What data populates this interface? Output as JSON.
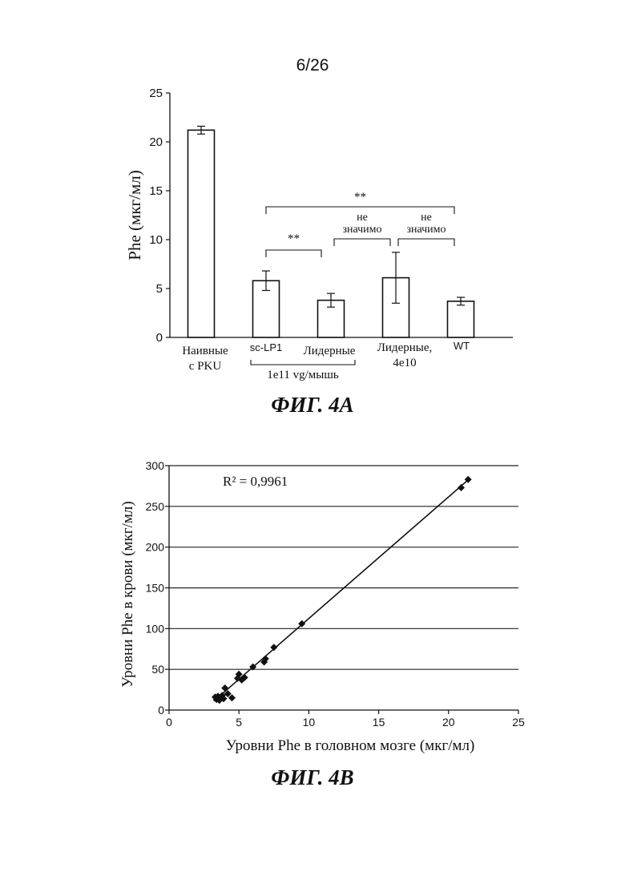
{
  "page_number": "6/26",
  "chart_data": [
    {
      "type": "bar",
      "ylabel": "Phe (мкг/мл)",
      "ylim": [
        0,
        25
      ],
      "yticks": [
        0,
        5,
        10,
        15,
        20,
        25
      ],
      "categories": [
        "Наивные\nс PKU",
        "sc-LP1",
        "Лидерные",
        "Лидерные,\n4e10",
        "WT"
      ],
      "values": [
        21.2,
        5.8,
        3.8,
        6.1,
        3.7
      ],
      "errors": [
        0.4,
        1.0,
        0.7,
        2.6,
        0.4
      ],
      "group_label": "1e11 vg/мышь",
      "annotations": [
        {
          "from": 1,
          "to": 4,
          "label": "**"
        },
        {
          "from": 1,
          "to": 2,
          "label": "**"
        },
        {
          "from": 2,
          "to": 3,
          "label": "не\nзначимо"
        },
        {
          "from": 3,
          "to": 4,
          "label": "не\nзначимо"
        }
      ],
      "caption": "ФИГ. 4A"
    },
    {
      "type": "scatter",
      "xlabel": "Уровни Phe в головном мозге (мкг/мл)",
      "ylabel": "Уровни Phe в крови (мкг/мл)",
      "xlim": [
        0,
        25
      ],
      "ylim": [
        0,
        300
      ],
      "xticks": [
        0,
        5,
        10,
        15,
        20,
        25
      ],
      "yticks": [
        0,
        50,
        100,
        150,
        200,
        250,
        300
      ],
      "grid": "horizontal",
      "annotation": "R² = 0,9961",
      "trendline": {
        "x": [
          3.2,
          21.5
        ],
        "y": [
          11,
          284
        ]
      },
      "points": [
        {
          "x": 3.3,
          "y": 16
        },
        {
          "x": 3.4,
          "y": 13
        },
        {
          "x": 3.5,
          "y": 17
        },
        {
          "x": 3.6,
          "y": 12
        },
        {
          "x": 3.7,
          "y": 15
        },
        {
          "x": 3.8,
          "y": 18
        },
        {
          "x": 3.9,
          "y": 14
        },
        {
          "x": 4.0,
          "y": 27
        },
        {
          "x": 4.2,
          "y": 20
        },
        {
          "x": 4.5,
          "y": 15
        },
        {
          "x": 4.9,
          "y": 39
        },
        {
          "x": 5.0,
          "y": 44
        },
        {
          "x": 5.2,
          "y": 37
        },
        {
          "x": 5.4,
          "y": 40
        },
        {
          "x": 6.0,
          "y": 53
        },
        {
          "x": 6.8,
          "y": 59
        },
        {
          "x": 6.9,
          "y": 63
        },
        {
          "x": 7.5,
          "y": 77
        },
        {
          "x": 9.5,
          "y": 106
        },
        {
          "x": 20.9,
          "y": 273
        },
        {
          "x": 21.4,
          "y": 283
        }
      ],
      "caption": "ФИГ. 4B"
    }
  ]
}
